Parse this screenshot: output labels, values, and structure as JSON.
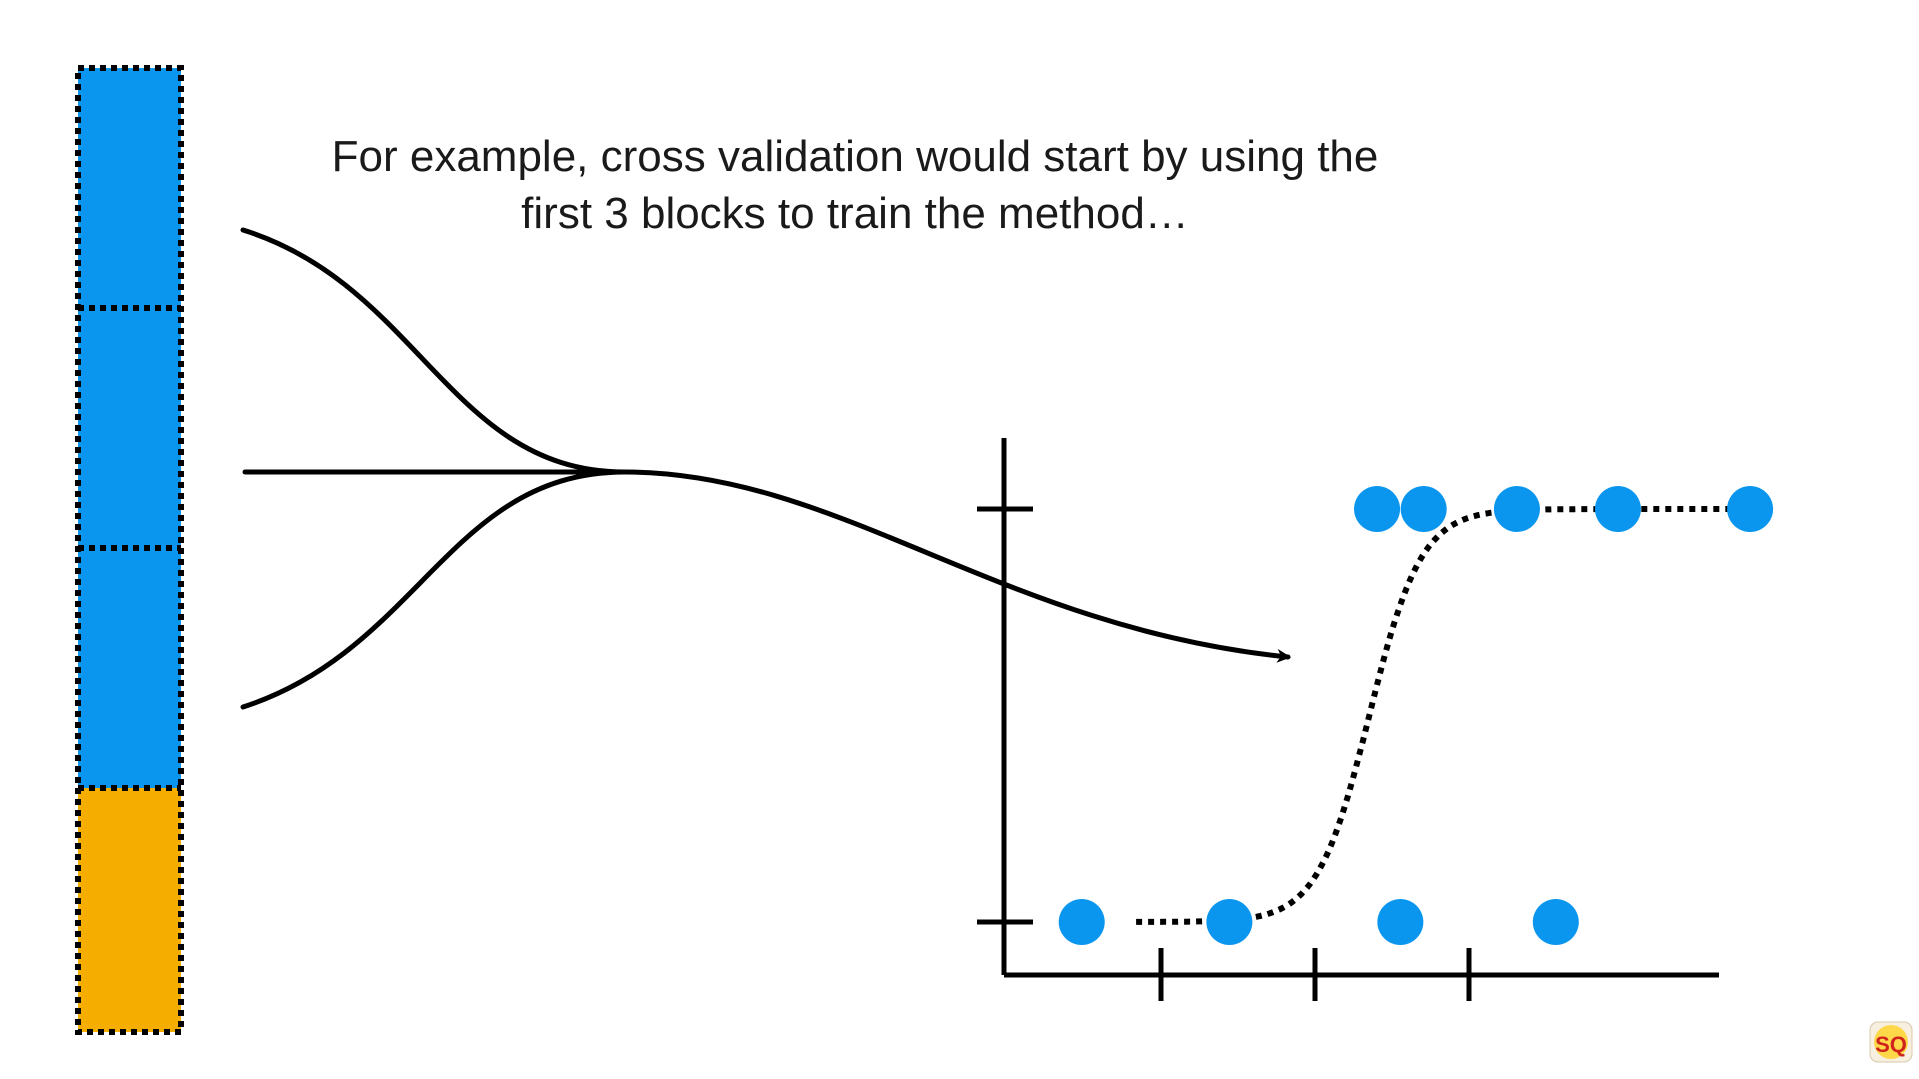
{
  "caption": {
    "line1": "For example, cross validation would start by using the",
    "line2": "first 3 blocks to train the method…"
  },
  "blocks": [
    {
      "role": "train",
      "color": "#0a96ee"
    },
    {
      "role": "train",
      "color": "#0a96ee"
    },
    {
      "role": "train",
      "color": "#0a96ee"
    },
    {
      "role": "test",
      "color": "#f5ad00"
    }
  ],
  "colors": {
    "point": "#0a96ee",
    "line": "#000000",
    "background": "#ffffff"
  },
  "chart_data": {
    "type": "scatter",
    "y_ticks": [
      0,
      1
    ],
    "x_ticks": [
      1,
      2,
      3
    ],
    "xlim": [
      0,
      4.6
    ],
    "ylim": [
      -0.12,
      1.2
    ],
    "points": [
      {
        "x": 0.5,
        "y": 0
      },
      {
        "x": 1.45,
        "y": 0
      },
      {
        "x": 2.55,
        "y": 0
      },
      {
        "x": 3.55,
        "y": 0
      },
      {
        "x": 2.4,
        "y": 1
      },
      {
        "x": 2.7,
        "y": 1
      },
      {
        "x": 3.3,
        "y": 1
      },
      {
        "x": 3.95,
        "y": 1
      },
      {
        "x": 4.8,
        "y": 1
      }
    ],
    "fit": {
      "style": "dotted",
      "kind": "logistic"
    }
  },
  "logo": {
    "label": "SQ",
    "name": "statquest-logo"
  }
}
